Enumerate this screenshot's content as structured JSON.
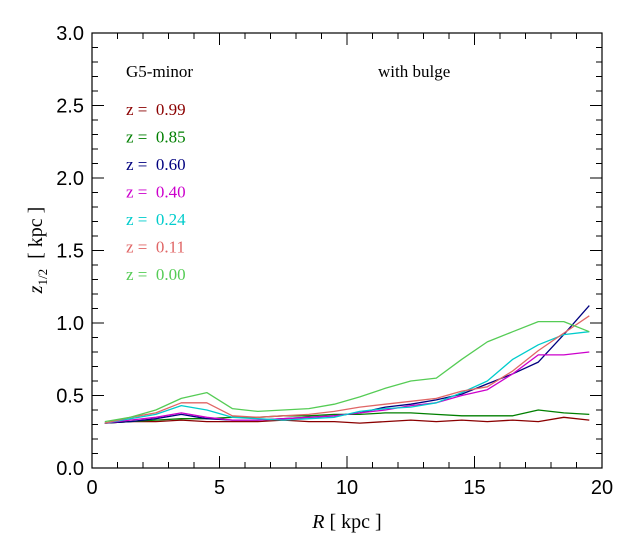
{
  "chart_data": {
    "type": "line",
    "xlabel_symbol": "R",
    "xlabel_unit": " [ kpc ]",
    "ylabel_symbol": "z",
    "ylabel_sub": "1/2",
    "ylabel_unit": "  [ kpc ]",
    "xlim": [
      0,
      20
    ],
    "ylim": [
      0,
      3.0
    ],
    "xticks": [
      0,
      5,
      10,
      15,
      20
    ],
    "xtick_labels": [
      "0",
      "5",
      "10",
      "15",
      "20"
    ],
    "yticks": [
      0.0,
      0.5,
      1.0,
      1.5,
      2.0,
      2.5,
      3.0
    ],
    "ytick_labels": [
      "0.0",
      "0.5",
      "1.0",
      "1.5",
      "2.0",
      "2.5",
      "3.0"
    ],
    "grid": false,
    "legend_placement": "upper-left",
    "annotations": {
      "model": "G5-minor",
      "variant": "with bulge"
    },
    "x": [
      0.5,
      1.5,
      2.5,
      3.5,
      4.5,
      5.5,
      6.5,
      7.5,
      8.5,
      9.5,
      10.5,
      11.5,
      12.5,
      13.5,
      14.5,
      15.5,
      16.5,
      17.5,
      18.5,
      19.5
    ],
    "series": [
      {
        "name": "z =  0.99",
        "color": "#8b0000",
        "values": [
          0.31,
          0.32,
          0.32,
          0.33,
          0.32,
          0.32,
          0.32,
          0.33,
          0.32,
          0.32,
          0.31,
          0.32,
          0.33,
          0.32,
          0.33,
          0.32,
          0.33,
          0.32,
          0.35,
          0.33
        ]
      },
      {
        "name": "z =  0.85",
        "color": "#007f00",
        "values": [
          0.31,
          0.32,
          0.33,
          0.34,
          0.34,
          0.35,
          0.35,
          0.36,
          0.36,
          0.37,
          0.37,
          0.38,
          0.38,
          0.37,
          0.36,
          0.36,
          0.36,
          0.4,
          0.38,
          0.37
        ]
      },
      {
        "name": "z =  0.60",
        "color": "#00007f",
        "values": [
          0.31,
          0.32,
          0.34,
          0.37,
          0.34,
          0.33,
          0.33,
          0.34,
          0.35,
          0.36,
          0.38,
          0.42,
          0.44,
          0.47,
          0.51,
          0.58,
          0.65,
          0.73,
          0.92,
          1.12
        ]
      },
      {
        "name": "z =  0.40",
        "color": "#cc00cc",
        "values": [
          0.31,
          0.33,
          0.35,
          0.38,
          0.35,
          0.33,
          0.33,
          0.34,
          0.35,
          0.36,
          0.38,
          0.4,
          0.43,
          0.45,
          0.5,
          0.54,
          0.65,
          0.78,
          0.78,
          0.8
        ]
      },
      {
        "name": "z =  0.24",
        "color": "#00cccc",
        "values": [
          0.31,
          0.34,
          0.37,
          0.43,
          0.4,
          0.35,
          0.34,
          0.33,
          0.34,
          0.35,
          0.39,
          0.41,
          0.42,
          0.45,
          0.52,
          0.6,
          0.75,
          0.85,
          0.92,
          0.94
        ]
      },
      {
        "name": "z =  0.11",
        "color": "#e06666",
        "values": [
          0.31,
          0.35,
          0.38,
          0.45,
          0.45,
          0.36,
          0.35,
          0.36,
          0.37,
          0.39,
          0.42,
          0.44,
          0.46,
          0.48,
          0.53,
          0.56,
          0.67,
          0.81,
          0.93,
          1.05
        ]
      },
      {
        "name": "z =  0.00",
        "color": "#55cc55",
        "values": [
          0.32,
          0.35,
          0.4,
          0.48,
          0.52,
          0.41,
          0.39,
          0.4,
          0.41,
          0.44,
          0.49,
          0.55,
          0.6,
          0.62,
          0.75,
          0.87,
          0.94,
          1.01,
          1.01,
          0.94
        ]
      }
    ]
  }
}
